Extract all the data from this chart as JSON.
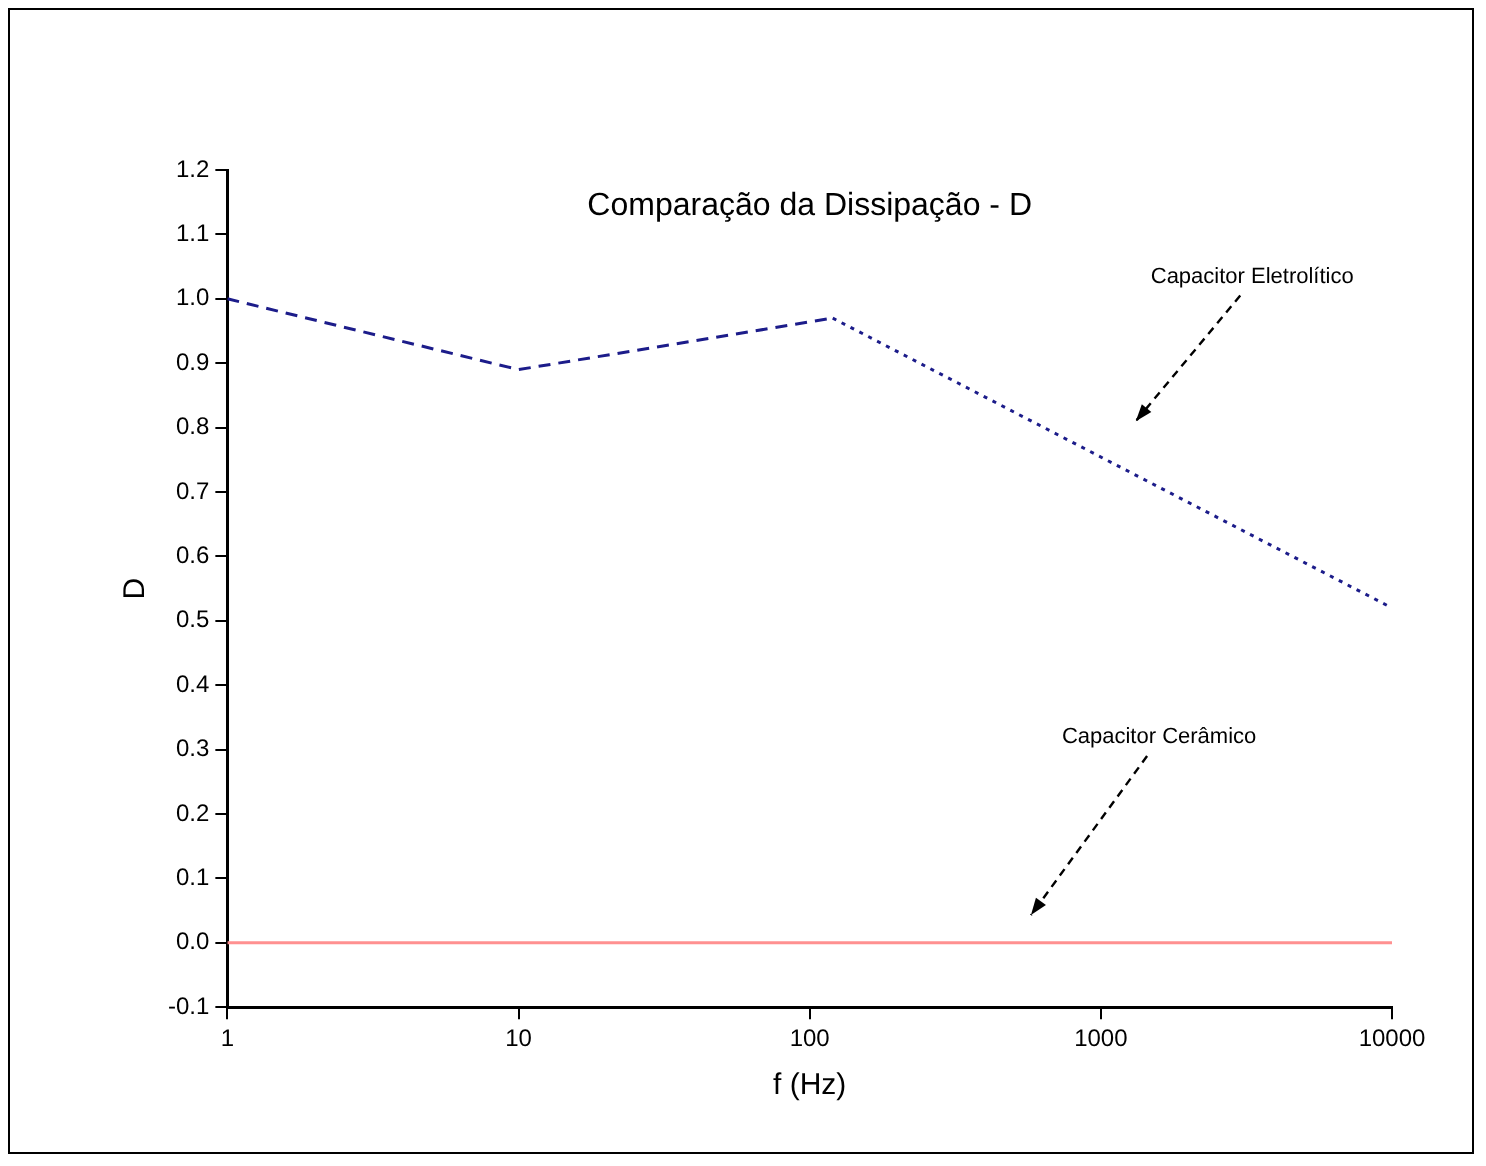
{
  "chart_data": {
    "type": "line",
    "title": "Comparação da Dissipação - D",
    "xlabel": "f (Hz)",
    "ylabel": "D",
    "log": "x",
    "xlim": [
      1,
      10000
    ],
    "xticks": [
      1,
      10,
      100,
      1000,
      10000
    ],
    "ylim": [
      -0.1,
      1.2
    ],
    "yticks": [
      -0.1,
      {
        "value": 0,
        "label": "0.0"
      },
      0.1,
      0.2,
      0.3,
      0.4,
      0.5,
      0.6,
      0.7,
      0.8,
      0.9,
      {
        "value": 1,
        "label": "1.0"
      },
      1.1,
      1.2
    ],
    "grid": false,
    "legend": false,
    "marker": "none",
    "series": [
      {
        "color": "#1c1c8a",
        "x": [
          1,
          10,
          120
        ],
        "values": [
          1.0,
          0.89,
          0.97
        ],
        "line_style": "dashed"
      },
      {
        "color": "#1c1c8a",
        "x": [
          120,
          10000
        ],
        "values": [
          0.97,
          0.52
        ],
        "line_style": "dotted"
      },
      {
        "color": "#ff9090",
        "x": [
          1,
          10000
        ],
        "values": [
          0,
          0
        ],
        "line_style": "solid"
      }
    ],
    "annotations": [
      "Capacitor Eletrolítico",
      "Capacitor Cerâmico"
    ]
  }
}
